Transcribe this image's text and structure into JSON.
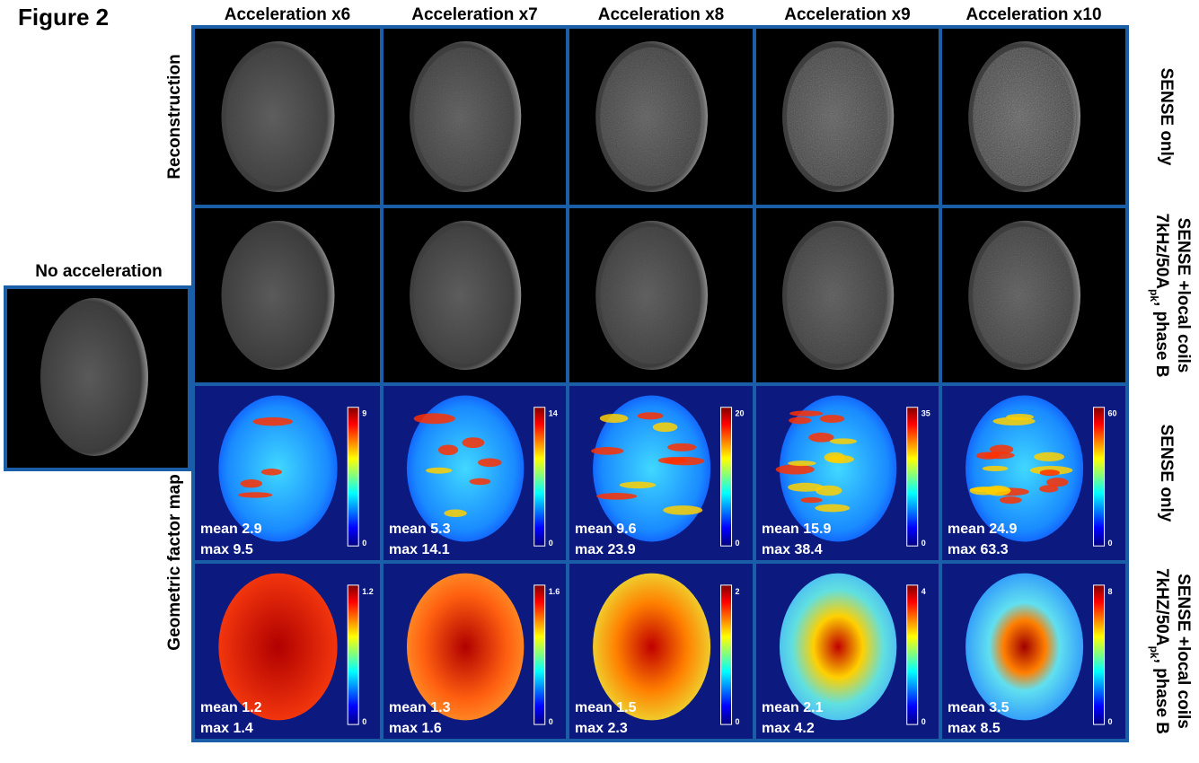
{
  "figure_label": "Figure 2",
  "no_acceleration": "No acceleration",
  "left_labels": [
    "Reconstruction",
    "Geometric factor map"
  ],
  "row_labels": [
    {
      "line1": "SENSE only"
    },
    {
      "line1": "SENSE +local coils",
      "line2": "7kHz/50A",
      "sub": "pk",
      "line2_rest": ", phase B"
    },
    {
      "line1": "SENSE only"
    },
    {
      "line1": "SENSE +local coils",
      "line2": "7kHZ/50A",
      "sub": "pk",
      "line2_rest": ", phase B"
    }
  ],
  "columns": [
    {
      "header": "Acceleration x6",
      "sense_only": {
        "mean": "mean 2.9",
        "max": "max 9.5",
        "colorbar": [
          "9",
          "0"
        ]
      },
      "local_coils": {
        "mean": "mean 1.2",
        "max": "max 1.4",
        "colorbar": [
          "1.2",
          "0"
        ]
      }
    },
    {
      "header": "Acceleration x7",
      "sense_only": {
        "mean": "mean 5.3",
        "max": "max 14.1",
        "colorbar": [
          "14",
          "0"
        ]
      },
      "local_coils": {
        "mean": "mean 1.3",
        "max": "max 1.6",
        "colorbar": [
          "1.6",
          "0"
        ]
      }
    },
    {
      "header": "Acceleration x8",
      "sense_only": {
        "mean": "mean 9.6",
        "max": "max 23.9",
        "colorbar": [
          "20",
          "0"
        ]
      },
      "local_coils": {
        "mean": "mean 1.5",
        "max": "max 2.3",
        "colorbar": [
          "2",
          "0"
        ]
      }
    },
    {
      "header": "Acceleration x9",
      "sense_only": {
        "mean": "mean 15.9",
        "max": "max 38.4",
        "colorbar": [
          "35",
          "0"
        ]
      },
      "local_coils": {
        "mean": "mean 2.1",
        "max": "max 4.2",
        "colorbar": [
          "4",
          "0"
        ]
      }
    },
    {
      "header": "Acceleration x10",
      "sense_only": {
        "mean": "mean 24.9",
        "max": "max 63.3",
        "colorbar": [
          "60",
          "0"
        ]
      },
      "local_coils": {
        "mean": "mean 3.5",
        "max": "max 8.5",
        "colorbar": [
          "8",
          "0"
        ]
      }
    }
  ]
}
